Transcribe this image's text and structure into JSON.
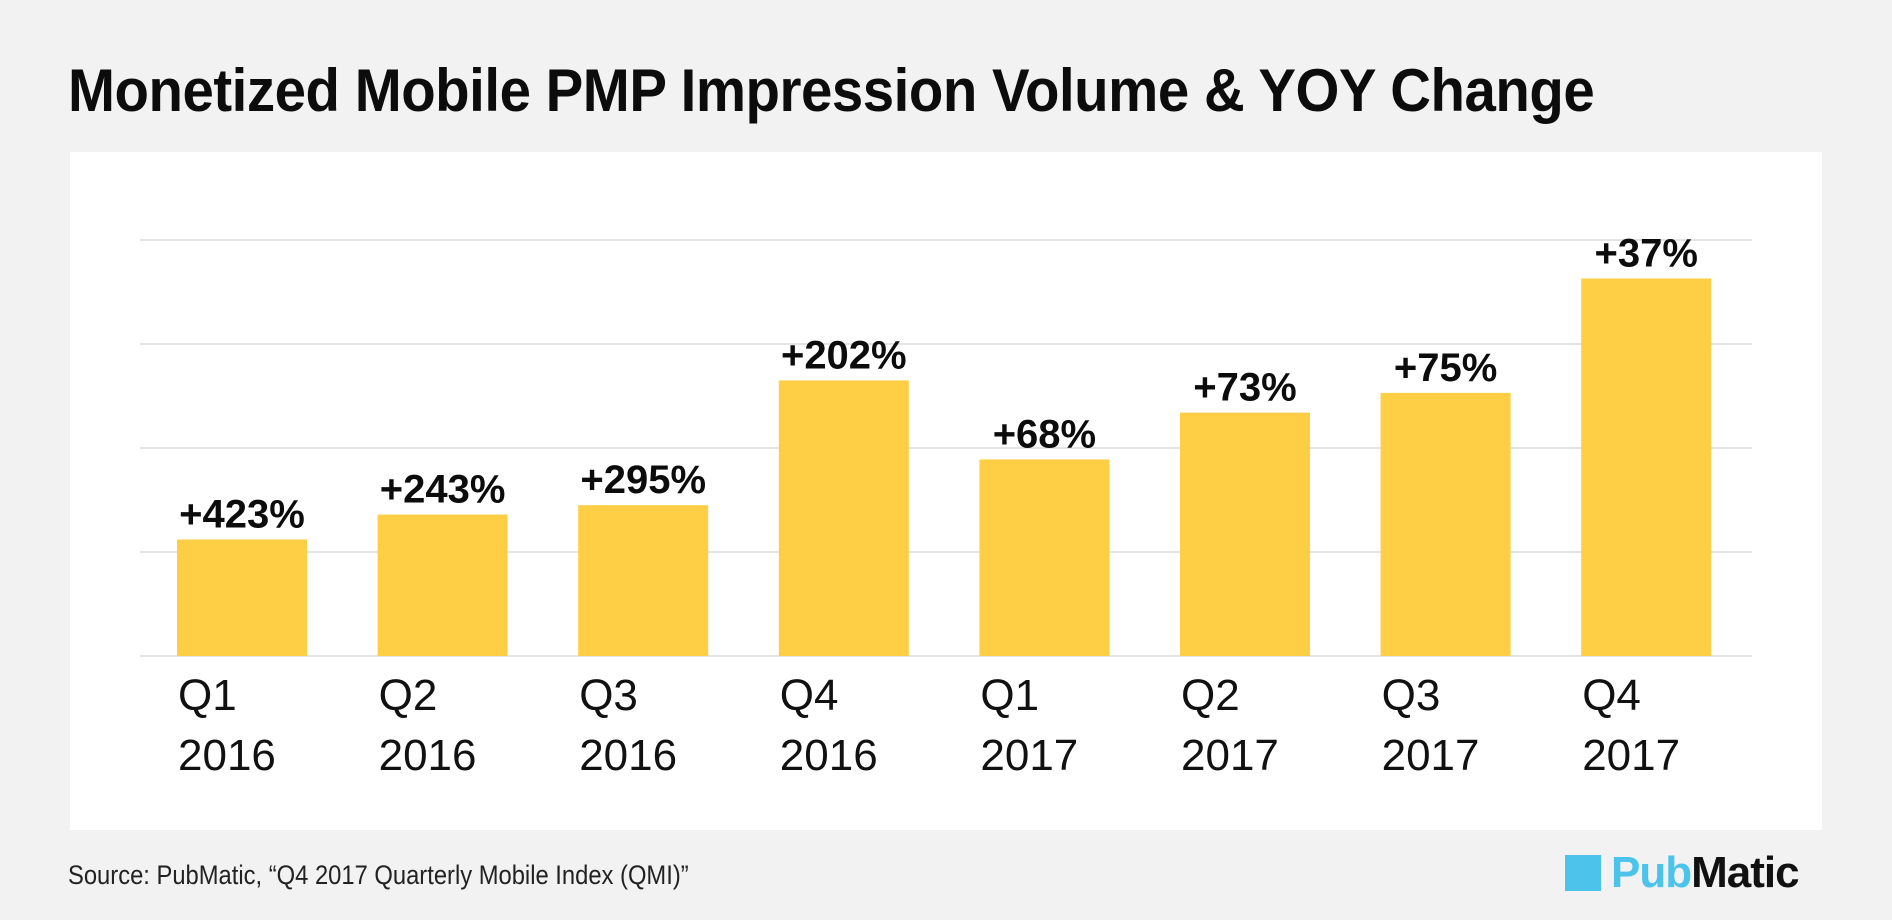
{
  "header": {
    "title": "Monetized Mobile PMP Impression Volume & YOY Change"
  },
  "footer": {
    "source": "Source: PubMatic, “Q4 2017 Quarterly Mobile Index (QMI)”",
    "logo": {
      "text_part1": "Pub",
      "text_part2": "Matic",
      "mark_color": "#4cc3ea",
      "part1_color": "#4cc3ea",
      "part2_color": "#111111"
    }
  },
  "chart_data": {
    "type": "bar",
    "title": "Monetized Mobile PMP Impression Volume & YOY Change",
    "xlabel": "",
    "ylabel": "",
    "categories": [
      [
        "Q1",
        "2016"
      ],
      [
        "Q2",
        "2016"
      ],
      [
        "Q3",
        "2016"
      ],
      [
        "Q4",
        "2016"
      ],
      [
        "Q1",
        "2017"
      ],
      [
        "Q2",
        "2017"
      ],
      [
        "Q3",
        "2017"
      ],
      [
        "Q4",
        "2017"
      ]
    ],
    "values": [
      1.12,
      1.36,
      1.45,
      2.65,
      1.89,
      2.34,
      2.53,
      3.63
    ],
    "data_labels": [
      "+423%",
      "+243%",
      "+295%",
      "+202%",
      "+68%",
      "+73%",
      "+75%",
      "+37%"
    ],
    "ylim": [
      0,
      4
    ],
    "grid": true,
    "y_tick_labels_shown": false,
    "bar_color": "#fece44",
    "grid_color": "#dcdcdc"
  }
}
